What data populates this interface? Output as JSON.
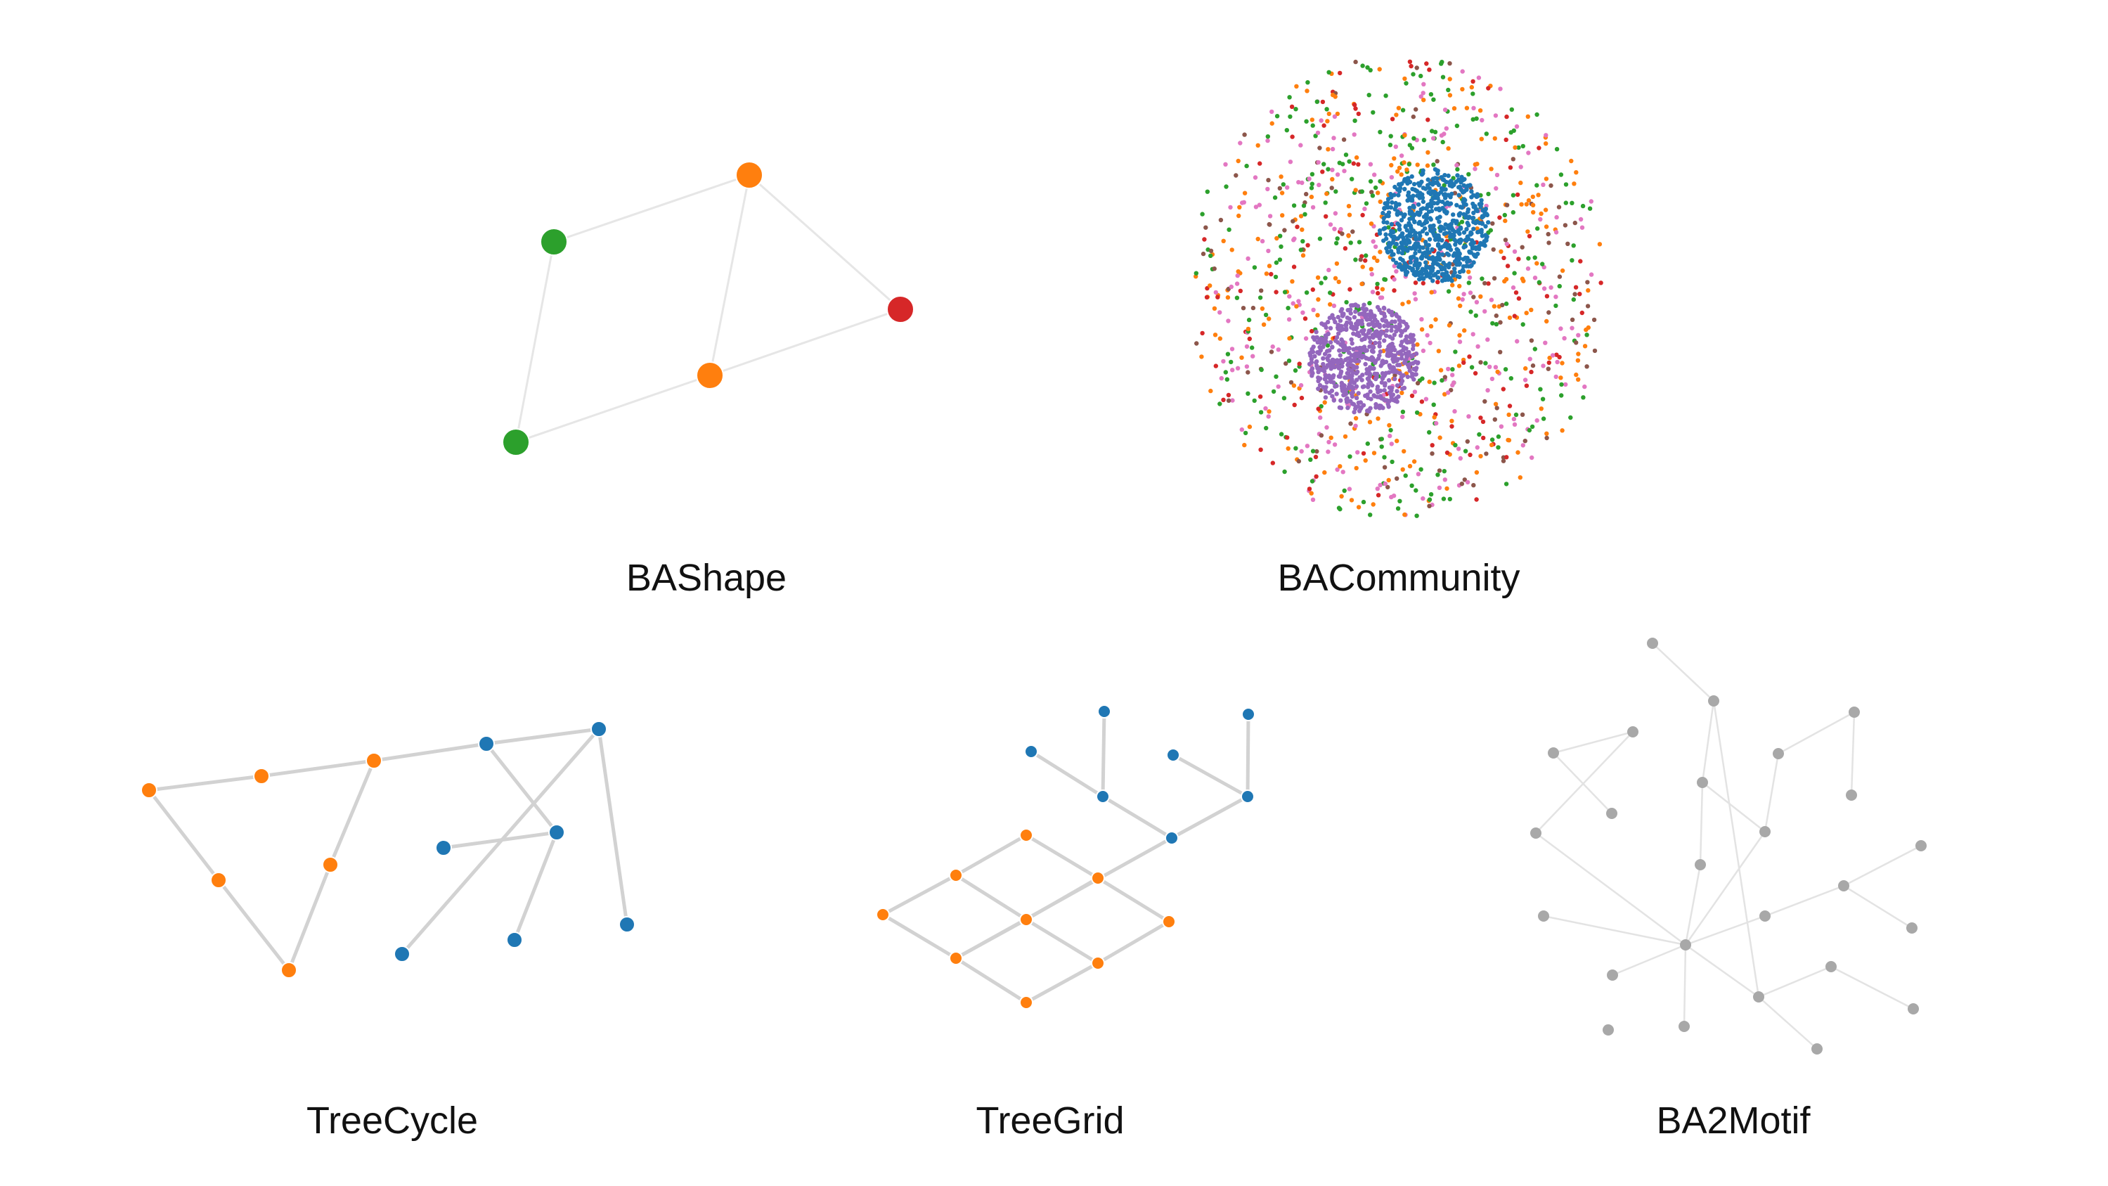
{
  "colors": {
    "blue": "#1f77b4",
    "orange": "#ff7f0e",
    "green": "#2ca02c",
    "red": "#d62728",
    "purple": "#9467bd",
    "brown": "#8c564b",
    "pink": "#e377c2",
    "grey": "#a8a8a8"
  },
  "panels": [
    {
      "id": "bashape",
      "caption": "BAShape",
      "nodes": [
        {
          "id": "n1",
          "color": "green"
        },
        {
          "id": "n2",
          "color": "orange"
        },
        {
          "id": "n3",
          "color": "red"
        },
        {
          "id": "n4",
          "color": "orange"
        },
        {
          "id": "n5",
          "color": "green"
        }
      ],
      "edges": [
        [
          "n1",
          "n2"
        ],
        [
          "n2",
          "n3"
        ],
        [
          "n2",
          "n4"
        ],
        [
          "n3",
          "n4"
        ],
        [
          "n4",
          "n5"
        ],
        [
          "n5",
          "n1"
        ]
      ]
    },
    {
      "id": "bacommunity",
      "caption": "BACommunity",
      "communities": [
        {
          "color": "blue",
          "role": "dense-core"
        },
        {
          "color": "purple",
          "role": "dense-core"
        },
        {
          "color": "orange",
          "role": "scattered"
        },
        {
          "color": "green",
          "role": "scattered"
        },
        {
          "color": "red",
          "role": "scattered"
        },
        {
          "color": "brown",
          "role": "scattered"
        },
        {
          "color": "pink",
          "role": "scattered"
        }
      ]
    },
    {
      "id": "treecycle",
      "caption": "TreeCycle",
      "nodes": [
        {
          "id": "o1",
          "color": "orange"
        },
        {
          "id": "o2",
          "color": "orange"
        },
        {
          "id": "o3",
          "color": "orange"
        },
        {
          "id": "o4",
          "color": "orange"
        },
        {
          "id": "o5",
          "color": "orange"
        },
        {
          "id": "o6",
          "color": "orange"
        },
        {
          "id": "b1",
          "color": "blue"
        },
        {
          "id": "b2",
          "color": "blue"
        },
        {
          "id": "b3",
          "color": "blue"
        },
        {
          "id": "b4",
          "color": "blue"
        },
        {
          "id": "b5",
          "color": "blue"
        },
        {
          "id": "b6",
          "color": "blue"
        },
        {
          "id": "b7",
          "color": "blue"
        }
      ],
      "edges": [
        [
          "o1",
          "o2"
        ],
        [
          "o2",
          "o3"
        ],
        [
          "o3",
          "b1"
        ],
        [
          "o1",
          "o4"
        ],
        [
          "o4",
          "o6"
        ],
        [
          "o6",
          "o5"
        ],
        [
          "o5",
          "o3"
        ],
        [
          "b1",
          "b2"
        ],
        [
          "b1",
          "b4"
        ],
        [
          "b2",
          "b3"
        ],
        [
          "b2",
          "b6"
        ],
        [
          "b4",
          "b5"
        ],
        [
          "b4",
          "b7"
        ]
      ]
    },
    {
      "id": "treegrid",
      "caption": "TreeGrid",
      "nodes": [
        {
          "id": "g1",
          "color": "orange"
        },
        {
          "id": "g2",
          "color": "orange"
        },
        {
          "id": "g3",
          "color": "orange"
        },
        {
          "id": "g4",
          "color": "orange"
        },
        {
          "id": "g5",
          "color": "orange"
        },
        {
          "id": "g6",
          "color": "orange"
        },
        {
          "id": "g7",
          "color": "orange"
        },
        {
          "id": "g8",
          "color": "orange"
        },
        {
          "id": "g9",
          "color": "orange"
        },
        {
          "id": "t1",
          "color": "blue"
        },
        {
          "id": "t2",
          "color": "blue"
        },
        {
          "id": "t3",
          "color": "blue"
        },
        {
          "id": "t4",
          "color": "blue"
        },
        {
          "id": "t5",
          "color": "blue"
        },
        {
          "id": "t6",
          "color": "blue"
        },
        {
          "id": "t7",
          "color": "blue"
        }
      ],
      "edges": [
        [
          "g1",
          "g2"
        ],
        [
          "g1",
          "g3"
        ],
        [
          "g2",
          "g4"
        ],
        [
          "g2",
          "g5"
        ],
        [
          "g3",
          "g5"
        ],
        [
          "g3",
          "g6"
        ],
        [
          "g4",
          "g7"
        ],
        [
          "g5",
          "g7"
        ],
        [
          "g5",
          "g8"
        ],
        [
          "g6",
          "g8"
        ],
        [
          "g7",
          "g9"
        ],
        [
          "g8",
          "g9"
        ],
        [
          "g7",
          "t1"
        ],
        [
          "t1",
          "t2"
        ],
        [
          "t1",
          "t3"
        ],
        [
          "t2",
          "t4"
        ],
        [
          "t2",
          "t5"
        ],
        [
          "t3",
          "t6"
        ],
        [
          "t3",
          "t7"
        ]
      ]
    },
    {
      "id": "ba2motif",
      "caption": "BA2Motif",
      "node_color": "grey"
    }
  ]
}
